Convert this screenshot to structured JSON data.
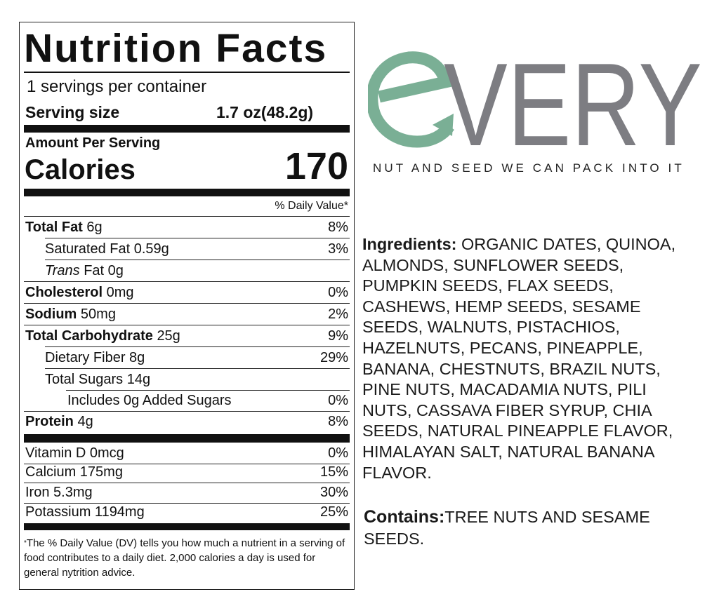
{
  "label": {
    "title": "Nutrition Facts",
    "servings": "1 servings per container",
    "serving_size_label": "Serving size",
    "serving_size_value": "1.7 oz(48.2g)",
    "amount_per_serving": "Amount Per Serving",
    "calories_label": "Calories",
    "calories_value": "170",
    "daily_value_header": "% Daily Value*",
    "nutrients": [
      {
        "name": "Total Fat",
        "amount": "6g",
        "dv": "8%"
      },
      {
        "name": "Saturated Fat",
        "amount": "0.59g",
        "dv": "3%"
      },
      {
        "name": "Trans",
        "name2": "Fat",
        "amount": "0g",
        "dv": ""
      },
      {
        "name": "Cholesterol",
        "amount": "0mg",
        "dv": "0%"
      },
      {
        "name": "Sodium",
        "amount": "50mg",
        "dv": "2%"
      },
      {
        "name": "Total Carbohydrate",
        "amount": "25g",
        "dv": "9%"
      },
      {
        "name": "Dietary Fiber",
        "amount": "8g",
        "dv": "29%"
      },
      {
        "name": "Total Sugars",
        "amount": "14g",
        "dv": ""
      },
      {
        "name": "Includes 0g Added Sugars",
        "amount": "",
        "dv": "0%"
      },
      {
        "name": "Protein",
        "amount": "4g",
        "dv": "8%"
      }
    ],
    "vitamins": [
      {
        "name": "Vitamin D 0mcg",
        "dv": "0%"
      },
      {
        "name": "Calcium 175mg",
        "dv": "15%"
      },
      {
        "name": "Iron 5.3mg",
        "dv": "30%"
      },
      {
        "name": "Potassium 1194mg",
        "dv": "25%"
      }
    ],
    "footnote_star": "*",
    "footnote": "The % Daily Value (DV) tells you how much a nutrient in a serving of food contributes to a daily diet. 2,000 calories a day is used for general nytrition advice."
  },
  "brand": {
    "logo_text": "eVERY",
    "tagline": "NUT AND SEED WE CAN PACK INTO IT",
    "colors": {
      "e": "#7aaf95",
      "very": "#7d7d82"
    }
  },
  "ingredients": {
    "label": "Ingredients:",
    "text": " ORGANIC DATES, QUINOA, ALMONDS, SUNFLOWER SEEDS, PUMPKIN SEEDS, FLAX SEEDS, CASHEWS, HEMP SEEDS, SESAME SEEDS, WALNUTS, PISTACHIOS, HAZELNUTS, PECANS, PINEAPPLE, BANANA, CHESTNUTS, BRAZIL NUTS, PINE NUTS, MACADAMIA NUTS, PILI NUTS, CASSAVA FIBER SYRUP, CHIA SEEDS, NATURAL PINEAPPLE FLAVOR, HIMALAYAN SALT, NATURAL BANANA FLAVOR."
  },
  "contains": {
    "label": "Contains:",
    "text": "TREE NUTS AND SESAME SEEDS."
  }
}
